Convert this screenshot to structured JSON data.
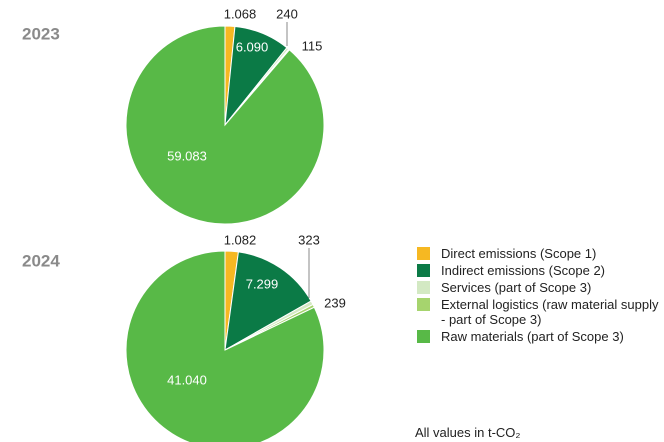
{
  "chart_data": [
    {
      "type": "pie",
      "title": "2023",
      "categories": [
        "Direct emissions (Scope 1)",
        "Indirect emissions (Scope 2)",
        "Services (part of Scope 3)",
        "External logistics (raw material supply - part of Scope 3)",
        "Raw materials (part of Scope 3)"
      ],
      "values": [
        1068,
        6090,
        240,
        115,
        59083
      ],
      "value_labels": [
        "1.068",
        "6.090",
        "240",
        "115",
        "59.083"
      ],
      "colors": [
        "#f6b822",
        "#0b7a46",
        "#d3e9c3",
        "#a6d46e",
        "#58b947"
      ]
    },
    {
      "type": "pie",
      "title": "2024",
      "categories": [
        "Direct emissions (Scope 1)",
        "Indirect emissions (Scope 2)",
        "Services (part of Scope 3)",
        "External logistics (raw material supply - part of Scope 3)",
        "Raw materials (part of Scope 3)"
      ],
      "values": [
        1082,
        7299,
        323,
        239,
        41040
      ],
      "value_labels": [
        "1.082",
        "7.299",
        "323",
        "239",
        "41.040"
      ],
      "colors": [
        "#f6b822",
        "#0b7a46",
        "#d3e9c3",
        "#a6d46e",
        "#58b947"
      ]
    }
  ],
  "footnote": "All values in t-CO₂"
}
